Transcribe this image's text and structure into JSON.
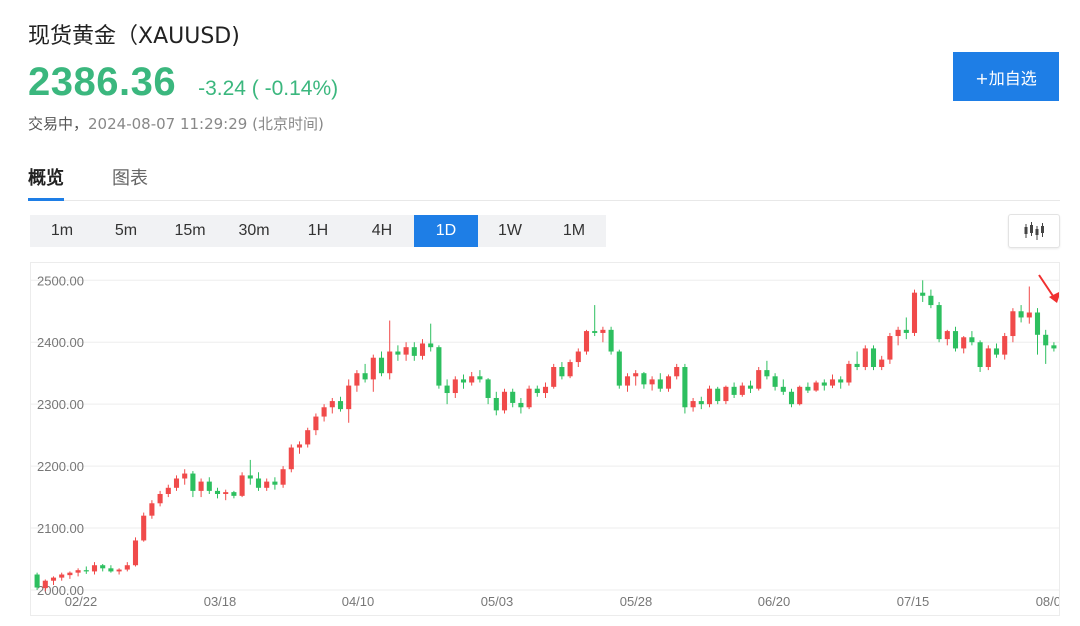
{
  "header": {
    "title": "现货黄金（XAUUSD)",
    "price": "2386.36",
    "change": "-3.24 ( -0.14%)",
    "status": "交易中，",
    "timestamp": "2024-08-07 11:29:29 (北京时间)",
    "watch_button": "+加自选",
    "price_color": "#3bb77e",
    "accent_color": "#1e7ee6"
  },
  "tabs": [
    {
      "label": "概览",
      "active": true
    },
    {
      "label": "图表",
      "active": false
    }
  ],
  "intervals": [
    {
      "label": "1m",
      "active": false
    },
    {
      "label": "5m",
      "active": false
    },
    {
      "label": "15m",
      "active": false
    },
    {
      "label": "30m",
      "active": false
    },
    {
      "label": "1H",
      "active": false
    },
    {
      "label": "4H",
      "active": false
    },
    {
      "label": "1D",
      "active": true
    },
    {
      "label": "1W",
      "active": false
    },
    {
      "label": "1M",
      "active": false
    }
  ],
  "chart_type_button": {
    "icon": "candlestick-icon"
  },
  "chart_data": {
    "type": "candlestick",
    "ylim": [
      2000,
      2515
    ],
    "y_ticks": [
      "2500.00",
      "2400.00",
      "2300.00",
      "2200.00",
      "2100.00",
      "2000.00"
    ],
    "x_ticks": [
      "02/22",
      "03/18",
      "04/10",
      "05/03",
      "05/28",
      "06/20",
      "07/15",
      "08/0"
    ],
    "up_color": "#f04a4a",
    "down_color": "#2dbf5f",
    "grid": true,
    "annotation": "last-price-arrow",
    "ohlc": [
      [
        2025,
        2028,
        2000,
        2004
      ],
      [
        2003,
        2017,
        1998,
        2015
      ],
      [
        2015,
        2022,
        2008,
        2020
      ],
      [
        2020,
        2028,
        2015,
        2025
      ],
      [
        2024,
        2030,
        2018,
        2028
      ],
      [
        2028,
        2035,
        2022,
        2032
      ],
      [
        2032,
        2038,
        2026,
        2030
      ],
      [
        2030,
        2045,
        2025,
        2040
      ],
      [
        2040,
        2042,
        2030,
        2035
      ],
      [
        2035,
        2040,
        2028,
        2030
      ],
      [
        2030,
        2035,
        2025,
        2033
      ],
      [
        2033,
        2045,
        2030,
        2040
      ],
      [
        2040,
        2085,
        2038,
        2080
      ],
      [
        2080,
        2125,
        2078,
        2120
      ],
      [
        2120,
        2145,
        2115,
        2140
      ],
      [
        2140,
        2160,
        2135,
        2155
      ],
      [
        2155,
        2170,
        2150,
        2165
      ],
      [
        2165,
        2185,
        2160,
        2180
      ],
      [
        2180,
        2195,
        2170,
        2188
      ],
      [
        2188,
        2192,
        2150,
        2160
      ],
      [
        2160,
        2180,
        2150,
        2175
      ],
      [
        2175,
        2182,
        2155,
        2160
      ],
      [
        2160,
        2165,
        2148,
        2155
      ],
      [
        2155,
        2162,
        2145,
        2158
      ],
      [
        2158,
        2160,
        2148,
        2152
      ],
      [
        2152,
        2190,
        2150,
        2185
      ],
      [
        2185,
        2210,
        2170,
        2180
      ],
      [
        2180,
        2190,
        2160,
        2165
      ],
      [
        2165,
        2180,
        2160,
        2175
      ],
      [
        2175,
        2182,
        2162,
        2170
      ],
      [
        2170,
        2200,
        2165,
        2195
      ],
      [
        2195,
        2235,
        2190,
        2230
      ],
      [
        2230,
        2240,
        2220,
        2235
      ],
      [
        2235,
        2262,
        2230,
        2258
      ],
      [
        2258,
        2285,
        2250,
        2280
      ],
      [
        2280,
        2300,
        2272,
        2295
      ],
      [
        2295,
        2310,
        2285,
        2305
      ],
      [
        2305,
        2312,
        2288,
        2292
      ],
      [
        2292,
        2340,
        2270,
        2330
      ],
      [
        2330,
        2355,
        2320,
        2350
      ],
      [
        2350,
        2365,
        2335,
        2340
      ],
      [
        2340,
        2380,
        2320,
        2375
      ],
      [
        2375,
        2385,
        2345,
        2350
      ],
      [
        2350,
        2435,
        2340,
        2385
      ],
      [
        2385,
        2395,
        2370,
        2380
      ],
      [
        2380,
        2400,
        2370,
        2392
      ],
      [
        2392,
        2400,
        2370,
        2378
      ],
      [
        2378,
        2405,
        2372,
        2398
      ],
      [
        2398,
        2430,
        2385,
        2392
      ],
      [
        2392,
        2395,
        2325,
        2330
      ],
      [
        2330,
        2340,
        2300,
        2318
      ],
      [
        2318,
        2345,
        2310,
        2340
      ],
      [
        2340,
        2348,
        2325,
        2335
      ],
      [
        2335,
        2352,
        2330,
        2345
      ],
      [
        2345,
        2355,
        2335,
        2340
      ],
      [
        2340,
        2342,
        2300,
        2310
      ],
      [
        2310,
        2320,
        2282,
        2290
      ],
      [
        2290,
        2325,
        2285,
        2320
      ],
      [
        2320,
        2325,
        2295,
        2302
      ],
      [
        2302,
        2310,
        2285,
        2295
      ],
      [
        2295,
        2330,
        2292,
        2325
      ],
      [
        2325,
        2330,
        2312,
        2318
      ],
      [
        2318,
        2335,
        2310,
        2328
      ],
      [
        2328,
        2365,
        2325,
        2360
      ],
      [
        2360,
        2368,
        2340,
        2345
      ],
      [
        2345,
        2372,
        2342,
        2368
      ],
      [
        2368,
        2390,
        2360,
        2385
      ],
      [
        2385,
        2420,
        2380,
        2418
      ],
      [
        2418,
        2460,
        2410,
        2415
      ],
      [
        2415,
        2425,
        2400,
        2420
      ],
      [
        2420,
        2425,
        2380,
        2385
      ],
      [
        2385,
        2388,
        2325,
        2330
      ],
      [
        2330,
        2350,
        2320,
        2345
      ],
      [
        2345,
        2355,
        2330,
        2350
      ],
      [
        2350,
        2352,
        2325,
        2332
      ],
      [
        2332,
        2345,
        2322,
        2340
      ],
      [
        2340,
        2350,
        2320,
        2325
      ],
      [
        2325,
        2348,
        2320,
        2345
      ],
      [
        2345,
        2365,
        2340,
        2360
      ],
      [
        2360,
        2365,
        2285,
        2295
      ],
      [
        2295,
        2310,
        2288,
        2305
      ],
      [
        2305,
        2312,
        2292,
        2300
      ],
      [
        2300,
        2330,
        2295,
        2325
      ],
      [
        2325,
        2328,
        2300,
        2305
      ],
      [
        2305,
        2330,
        2300,
        2328
      ],
      [
        2328,
        2335,
        2310,
        2315
      ],
      [
        2315,
        2335,
        2312,
        2330
      ],
      [
        2330,
        2338,
        2318,
        2325
      ],
      [
        2325,
        2360,
        2322,
        2355
      ],
      [
        2355,
        2370,
        2340,
        2345
      ],
      [
        2345,
        2350,
        2322,
        2328
      ],
      [
        2328,
        2340,
        2315,
        2320
      ],
      [
        2320,
        2325,
        2295,
        2300
      ],
      [
        2300,
        2330,
        2298,
        2328
      ],
      [
        2328,
        2335,
        2318,
        2322
      ],
      [
        2322,
        2338,
        2320,
        2335
      ],
      [
        2335,
        2340,
        2322,
        2330
      ],
      [
        2330,
        2348,
        2326,
        2340
      ],
      [
        2340,
        2345,
        2325,
        2335
      ],
      [
        2335,
        2370,
        2330,
        2365
      ],
      [
        2365,
        2385,
        2355,
        2360
      ],
      [
        2360,
        2395,
        2355,
        2390
      ],
      [
        2390,
        2395,
        2355,
        2360
      ],
      [
        2360,
        2378,
        2355,
        2372
      ],
      [
        2372,
        2415,
        2365,
        2410
      ],
      [
        2410,
        2425,
        2395,
        2420
      ],
      [
        2420,
        2440,
        2405,
        2415
      ],
      [
        2415,
        2485,
        2410,
        2480
      ],
      [
        2480,
        2500,
        2465,
        2475
      ],
      [
        2475,
        2485,
        2455,
        2460
      ],
      [
        2460,
        2465,
        2400,
        2405
      ],
      [
        2405,
        2420,
        2395,
        2418
      ],
      [
        2418,
        2425,
        2385,
        2390
      ],
      [
        2390,
        2410,
        2382,
        2408
      ],
      [
        2408,
        2418,
        2395,
        2400
      ],
      [
        2400,
        2403,
        2352,
        2360
      ],
      [
        2360,
        2395,
        2355,
        2390
      ],
      [
        2390,
        2398,
        2375,
        2380
      ],
      [
        2380,
        2415,
        2372,
        2410
      ],
      [
        2410,
        2455,
        2400,
        2450
      ],
      [
        2450,
        2460,
        2432,
        2440
      ],
      [
        2440,
        2490,
        2430,
        2448
      ],
      [
        2448,
        2455,
        2380,
        2412
      ],
      [
        2412,
        2420,
        2365,
        2395
      ],
      [
        2395,
        2400,
        2385,
        2390
      ]
    ]
  }
}
